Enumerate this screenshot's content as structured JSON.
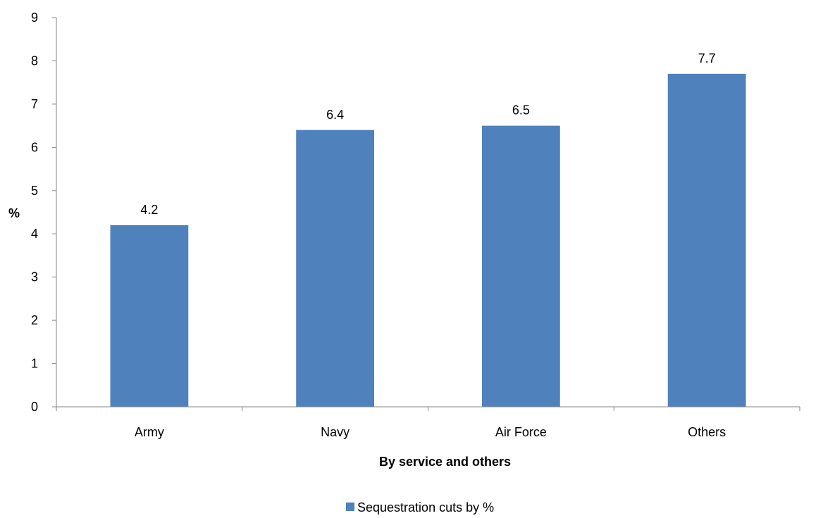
{
  "chart_data": {
    "type": "bar",
    "categories": [
      "Army",
      "Navy",
      "Air Force",
      "Others"
    ],
    "series": [
      {
        "name": "Sequestration cuts by %",
        "values": [
          4.2,
          6.4,
          6.5,
          7.7
        ],
        "color": "#4F81BD"
      }
    ],
    "data_labels": [
      "4.2",
      "6.4",
      "6.5",
      "7.7"
    ],
    "title": "",
    "xlabel": "By service and others",
    "ylabel": "%",
    "ylim": [
      0,
      9
    ],
    "yticks": [
      "0",
      "1",
      "2",
      "3",
      "4",
      "5",
      "6",
      "7",
      "8",
      "9"
    ],
    "grid": false,
    "legend_position": "bottom"
  }
}
